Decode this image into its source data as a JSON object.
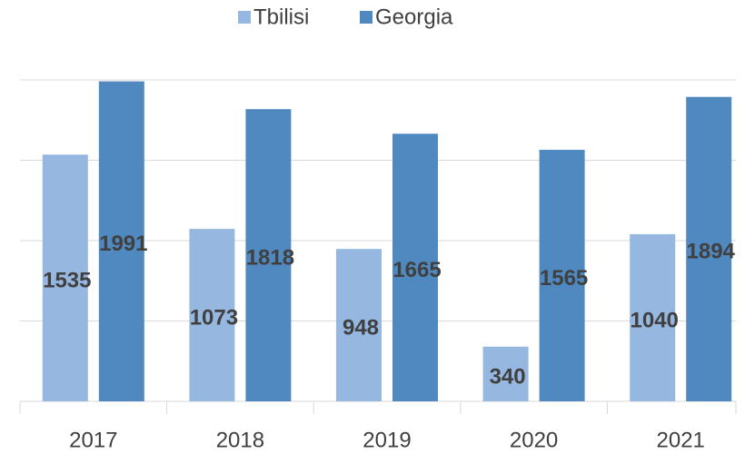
{
  "chart_data": {
    "type": "bar",
    "categories": [
      "2017",
      "2018",
      "2019",
      "2020",
      "2021"
    ],
    "series": [
      {
        "name": "Tbilisi",
        "color": "#95b7e0",
        "values": [
          1535,
          1073,
          948,
          340,
          1040
        ]
      },
      {
        "name": "Georgia",
        "color": "#4f89c0",
        "values": [
          1991,
          1818,
          1665,
          1565,
          1894
        ]
      }
    ],
    "ylim": [
      0,
      2000
    ],
    "yticks": [
      0,
      500,
      1000,
      1500,
      2000
    ],
    "grid": true,
    "legend": "top"
  }
}
